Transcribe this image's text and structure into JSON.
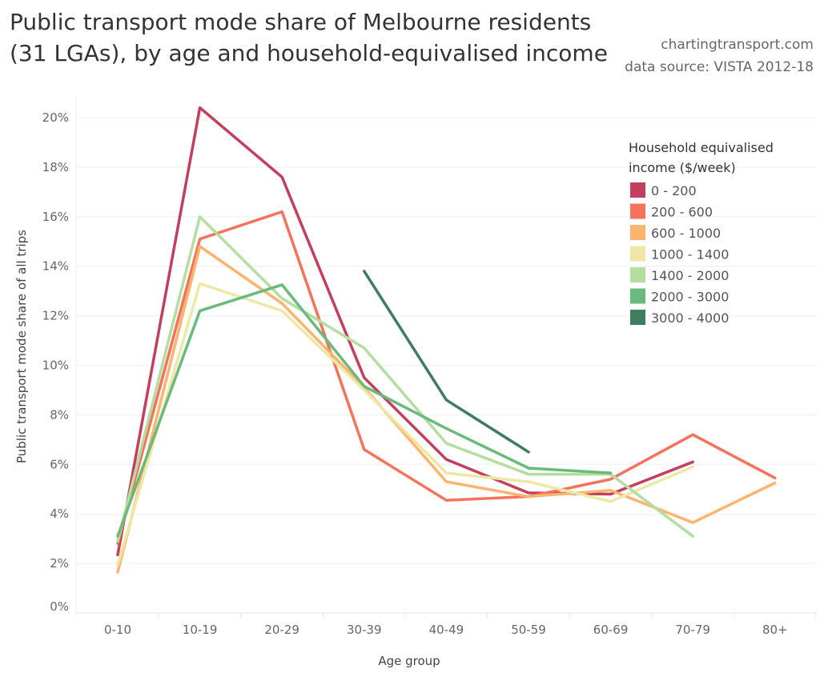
{
  "header": {
    "title": "Public transport mode share of Melbourne residents (31 LGAs), by age and household-equivalised income",
    "site": "chartingtransport.com",
    "source": "data source: VISTA 2012-18"
  },
  "chart_data": {
    "type": "line",
    "title": "Public transport mode share of Melbourne residents (31 LGAs), by age and household-equivalised income",
    "xlabel": "Age group",
    "ylabel": "Public transport mode share of all trips",
    "categories": [
      "0-10",
      "10-19",
      "20-29",
      "30-39",
      "40-49",
      "50-59",
      "60-69",
      "70-79",
      "80+"
    ],
    "yticks": [
      "0%",
      "2%",
      "4%",
      "6%",
      "8%",
      "10%",
      "12%",
      "14%",
      "16%",
      "18%",
      "20%"
    ],
    "ylim": [
      0,
      20.8
    ],
    "grid": true,
    "legend_title": "Household equivalised income ($/week)",
    "legend_title_lines": [
      "Household equivalised",
      "income ($/week)"
    ],
    "legend_position": "right",
    "series": [
      {
        "name": "0 - 200",
        "color": "#c2405e",
        "values": [
          2.35,
          20.4,
          17.6,
          9.5,
          6.2,
          4.85,
          4.8,
          6.1,
          null
        ]
      },
      {
        "name": "200 - 600",
        "color": "#f4735a",
        "values": [
          2.8,
          15.1,
          16.2,
          6.6,
          4.55,
          4.7,
          5.4,
          7.2,
          5.45
        ]
      },
      {
        "name": "600 - 1000",
        "color": "#fdb46f",
        "values": [
          1.65,
          14.8,
          12.5,
          9.1,
          5.3,
          4.7,
          4.95,
          3.65,
          5.25
        ]
      },
      {
        "name": "1000 - 1400",
        "color": "#eee8a6",
        "values": [
          1.95,
          13.3,
          12.2,
          9.0,
          5.65,
          5.3,
          4.5,
          5.9,
          null
        ]
      },
      {
        "name": "1400 - 2000",
        "color": "#b3dea0",
        "values": [
          2.9,
          16.0,
          12.7,
          10.7,
          6.85,
          5.6,
          5.6,
          3.1,
          null
        ]
      },
      {
        "name": "2000 - 3000",
        "color": "#6aba7e",
        "values": [
          3.1,
          12.2,
          13.25,
          9.15,
          7.45,
          5.85,
          5.65,
          null,
          null
        ]
      },
      {
        "name": "3000 - 4000",
        "color": "#3e7d5e",
        "values": [
          null,
          null,
          null,
          13.8,
          8.6,
          6.5,
          null,
          null,
          null
        ]
      }
    ]
  }
}
